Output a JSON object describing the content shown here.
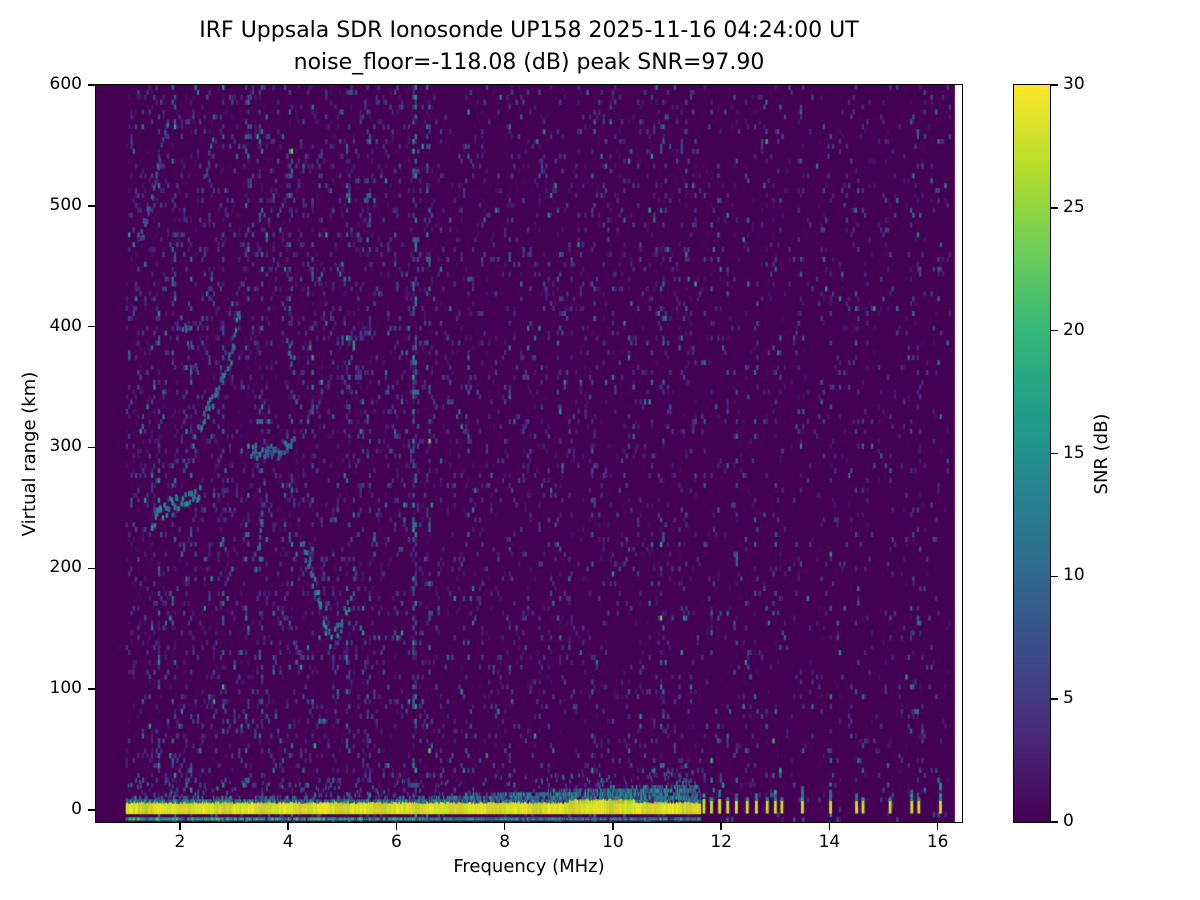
{
  "colors": {
    "background": "#ffffff",
    "axes_low_color": "#440154",
    "peak_color": "#fde725",
    "spine_color": "#000000"
  },
  "chart_data": {
    "type": "heatmap",
    "title": "IRF Uppsala SDR Ionosonde UP158 2025-11-16 04:24:00  UT",
    "subtitle": "noise_floor=-118.08 (dB) peak SNR=97.90",
    "station": "IRF Uppsala SDR Ionosonde UP158",
    "timestamp_ut": "2025-11-16 04:24:00",
    "noise_floor_db": -118.08,
    "peak_snr_db": 97.9,
    "xlabel": "Frequency (MHz)",
    "ylabel": "Virtual range (km)",
    "xlim": [
      0.45,
      16.45
    ],
    "ylim": [
      -10,
      600
    ],
    "xticks": [
      2,
      4,
      6,
      8,
      10,
      12,
      14,
      16
    ],
    "yticks": [
      0,
      100,
      200,
      300,
      400,
      500,
      600
    ],
    "colormap": "viridis",
    "colorbar": {
      "label": "SNR (dB)",
      "min": 0,
      "max": 30,
      "ticks": [
        0,
        5,
        10,
        15,
        20,
        25,
        30
      ]
    },
    "features": {
      "data_f_max_bg": 16.32,
      "speckle": {
        "cols": 360,
        "rows": 150,
        "f_range": [
          1.0,
          16.25
        ],
        "p_low": 0.26,
        "p_mid": 0.18,
        "p_high": 0.1
      },
      "interference": [
        {
          "f": 1.62,
          "p": 0.35,
          "a": 9
        },
        {
          "f": 1.9,
          "p": 0.15,
          "a": 6
        },
        {
          "f": 2.2,
          "p": 0.12,
          "a": 5
        },
        {
          "f": 2.8,
          "p": 0.2,
          "a": 7
        },
        {
          "f": 3.25,
          "p": 0.18,
          "a": 7
        },
        {
          "f": 3.5,
          "p": 0.12,
          "a": 5
        },
        {
          "f": 4.05,
          "p": 0.12,
          "a": 5
        },
        {
          "f": 4.45,
          "p": 0.15,
          "a": 6
        },
        {
          "f": 5.1,
          "p": 0.12,
          "a": 5
        },
        {
          "f": 5.5,
          "p": 0.1,
          "a": 4
        },
        {
          "f": 6.35,
          "p": 0.45,
          "a": 11,
          "w": 0.04
        },
        {
          "f": 6.6,
          "p": 0.2,
          "a": 6
        },
        {
          "f": 7.3,
          "p": 0.1,
          "a": 4
        },
        {
          "f": 8.1,
          "p": 0.1,
          "a": 4
        },
        {
          "f": 9.0,
          "p": 0.1,
          "a": 4
        },
        {
          "f": 9.65,
          "p": 0.12,
          "a": 4
        },
        {
          "f": 10.3,
          "p": 0.1,
          "a": 4
        },
        {
          "f": 10.9,
          "p": 0.15,
          "a": 5
        },
        {
          "f": 11.35,
          "p": 0.12,
          "a": 4
        }
      ],
      "echo_traces": [
        {
          "points": [
            [
              1.45,
              238
            ],
            [
              1.8,
              252
            ],
            [
              2.15,
              258
            ],
            [
              2.35,
              262
            ]
          ],
          "snr": 13
        },
        {
          "points": [
            [
              2.25,
              312
            ],
            [
              2.6,
              338
            ],
            [
              2.9,
              372
            ],
            [
              3.1,
              412
            ]
          ],
          "snr": 11
        },
        {
          "points": [
            [
              3.3,
              298
            ],
            [
              3.7,
              293
            ],
            [
              4.1,
              308
            ]
          ],
          "snr": 10
        },
        {
          "points": [
            [
              4.25,
              218
            ],
            [
              4.55,
              172
            ],
            [
              4.75,
              140
            ],
            [
              4.95,
              152
            ],
            [
              5.15,
              178
            ]
          ],
          "snr": 12
        },
        {
          "points": [
            [
              3.38,
              196
            ],
            [
              3.48,
              236
            ],
            [
              3.55,
              266
            ]
          ],
          "snr": 10
        },
        {
          "points": [
            [
              1.25,
              470
            ],
            [
              1.55,
              525
            ],
            [
              1.75,
              568
            ]
          ],
          "snr": 8
        },
        {
          "points": [
            [
              2.0,
              408
            ],
            [
              2.3,
              368
            ]
          ],
          "snr": 8
        },
        {
          "points": [
            [
              2.45,
              520
            ],
            [
              2.6,
              556
            ]
          ],
          "snr": 8
        },
        {
          "points": [
            [
              3.9,
              398
            ],
            [
              4.05,
              372
            ]
          ],
          "snr": 8
        }
      ],
      "ground_band": {
        "f_range": [
          1.0,
          11.62
        ],
        "yellow_top_km": 5.5,
        "band_bottom_km": -3.5,
        "bulge": {
          "f_range": [
            9.2,
            10.4
          ],
          "top_km": 8
        },
        "fringe_base_km": 7,
        "fringe_start_mhz": 6,
        "fringe_growth_per_mhz": 2.2,
        "underline_km": -7.5,
        "snr_max": 30
      },
      "pulses": [
        {
          "f": 11.68,
          "h": 14
        },
        {
          "f": 11.82,
          "h": 12
        },
        {
          "f": 11.97,
          "h": 16
        },
        {
          "f": 12.12,
          "h": 12
        },
        {
          "f": 12.28,
          "h": 14
        },
        {
          "f": 12.48,
          "h": 12
        },
        {
          "f": 12.65,
          "h": 15
        },
        {
          "f": 12.85,
          "h": 12
        },
        {
          "f": 13.0,
          "h": 18
        },
        {
          "f": 13.12,
          "h": 12
        },
        {
          "f": 13.5,
          "h": 20
        },
        {
          "f": 14.02,
          "h": 24
        },
        {
          "f": 14.5,
          "h": 15
        },
        {
          "f": 14.62,
          "h": 12
        },
        {
          "f": 15.12,
          "h": 10
        },
        {
          "f": 15.52,
          "h": 16
        },
        {
          "f": 15.65,
          "h": 12
        },
        {
          "f": 16.05,
          "h": 22
        }
      ]
    }
  }
}
